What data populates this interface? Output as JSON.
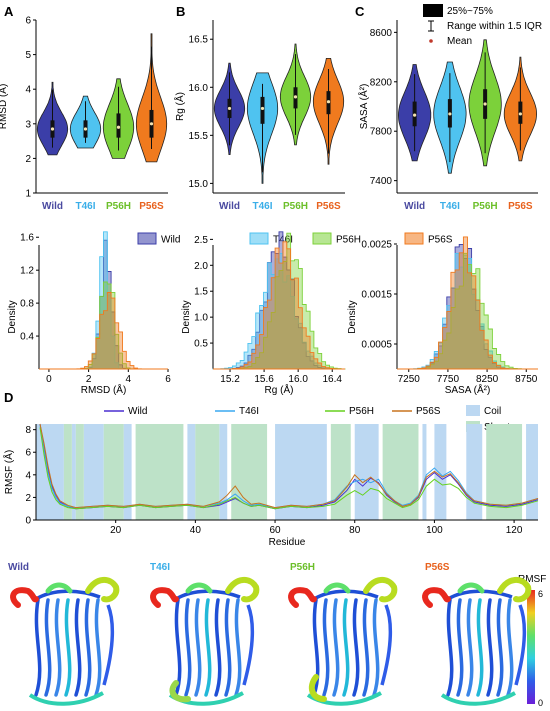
{
  "panel_letters": [
    "A",
    "B",
    "C",
    "D"
  ],
  "groups": [
    "Wild",
    "T46I",
    "P56H",
    "P56S"
  ],
  "group_colors": [
    "#3b3ea8",
    "#4fc3f0",
    "#7cd13a",
    "#f07a1e"
  ],
  "group_label_colors": [
    "#4a4aa0",
    "#3aaee8",
    "#6cbf2a",
    "#e8621e"
  ],
  "legend_top": {
    "iqr_label": "25%~75%",
    "range_label": "Range within 1.5 IQR",
    "mean_label": "Mean"
  },
  "legend_mid": [
    "Wild",
    "T46I",
    "P56H",
    "P56S"
  ],
  "legend_d": {
    "series": [
      "Wild",
      "T46I",
      "P56H",
      "P56S"
    ],
    "colors": [
      "#4a2fd0",
      "#3aa8f0",
      "#66d11e",
      "#c8741e"
    ],
    "coil": "Coil",
    "sheet": "Sheet"
  },
  "rmsf_colorbar": {
    "title": "RMSF",
    "max": "6",
    "min": "0"
  },
  "chart_data": [
    {
      "type": "violin",
      "panel": "A",
      "ylabel": "RMSD (Å)",
      "ylim": [
        1,
        6
      ],
      "yticks": [
        1,
        2,
        3,
        4,
        5,
        6
      ],
      "categories": [
        "Wild",
        "T46I",
        "P56H",
        "P56S"
      ],
      "medians": [
        2.85,
        2.85,
        2.9,
        3.0
      ],
      "q1": [
        2.6,
        2.6,
        2.6,
        2.6
      ],
      "q3": [
        3.1,
        3.1,
        3.3,
        3.4
      ],
      "min": [
        2.1,
        2.3,
        2.0,
        1.9
      ],
      "max": [
        4.2,
        3.8,
        4.3,
        5.6
      ]
    },
    {
      "type": "violin",
      "panel": "B",
      "ylabel": "Rg (Å)",
      "ylim": [
        14.9,
        16.7
      ],
      "yticks": [
        15.0,
        15.5,
        16.0,
        16.5
      ],
      "categories": [
        "Wild",
        "T46I",
        "P56H",
        "P56S"
      ],
      "medians": [
        15.78,
        15.78,
        15.9,
        15.85
      ],
      "q1": [
        15.68,
        15.62,
        15.78,
        15.72
      ],
      "q3": [
        15.88,
        15.9,
        16.0,
        15.96
      ],
      "min": [
        15.3,
        15.0,
        15.4,
        15.2
      ],
      "max": [
        16.25,
        16.15,
        16.45,
        16.3
      ]
    },
    {
      "type": "violin",
      "panel": "C",
      "ylabel": "SASA (Å²)",
      "ylim": [
        7300,
        8700
      ],
      "yticks": [
        7400,
        7800,
        8200,
        8600
      ],
      "categories": [
        "Wild",
        "T46I",
        "P56H",
        "P56S"
      ],
      "medians": [
        7930,
        7940,
        8020,
        7940
      ],
      "q1": [
        7840,
        7830,
        7900,
        7860
      ],
      "q3": [
        8040,
        8060,
        8140,
        8040
      ],
      "min": [
        7560,
        7460,
        7520,
        7560
      ],
      "max": [
        8340,
        8360,
        8540,
        8400
      ]
    },
    {
      "type": "histogram",
      "panel": "A-lower",
      "xlabel": "RMSD (Å)",
      "ylabel": "Density",
      "xlim": [
        -0.5,
        6
      ],
      "ylim": [
        0,
        1.7
      ],
      "xticks": [
        0,
        2,
        4,
        6
      ],
      "yticks": [
        0.4,
        0.8,
        1.2,
        1.6
      ],
      "series": [
        {
          "name": "Wild",
          "mean": 2.9,
          "sd": 0.28
        },
        {
          "name": "T46I",
          "mean": 2.8,
          "sd": 0.25
        },
        {
          "name": "P56H",
          "mean": 2.95,
          "sd": 0.35
        },
        {
          "name": "P56S",
          "mean": 3.05,
          "sd": 0.45
        }
      ]
    },
    {
      "type": "histogram",
      "panel": "B-lower",
      "xlabel": "Rg (Å)",
      "ylabel": "Density",
      "xlim": [
        15.0,
        16.55
      ],
      "ylim": [
        0,
        2.7
      ],
      "xticks": [
        15.2,
        15.6,
        16.0,
        16.4
      ],
      "yticks": [
        0.5,
        1.0,
        1.5,
        2.0,
        2.5
      ],
      "series": [
        {
          "name": "Wild",
          "mean": 15.78,
          "sd": 0.16
        },
        {
          "name": "T46I",
          "mean": 15.76,
          "sd": 0.19
        },
        {
          "name": "P56H",
          "mean": 15.9,
          "sd": 0.17
        },
        {
          "name": "P56S",
          "mean": 15.83,
          "sd": 0.17
        }
      ]
    },
    {
      "type": "histogram",
      "panel": "C-lower",
      "xlabel": "SASA (Å²)",
      "ylabel": "Density",
      "xlim": [
        7100,
        8900
      ],
      "ylim": [
        0,
        0.0028
      ],
      "xticks": [
        7250,
        7750,
        8250,
        8750
      ],
      "yticks": [
        0.0005,
        0.0015,
        0.0025
      ],
      "series": [
        {
          "name": "Wild",
          "mean": 7940,
          "sd": 160
        },
        {
          "name": "T46I",
          "mean": 7945,
          "sd": 175
        },
        {
          "name": "P56H",
          "mean": 8020,
          "sd": 185
        },
        {
          "name": "P56S",
          "mean": 7950,
          "sd": 165
        }
      ]
    },
    {
      "type": "line",
      "panel": "D",
      "xlabel": "Residue",
      "ylabel": "RMSF (Å)",
      "xlim": [
        0,
        126
      ],
      "ylim": [
        0,
        8.5
      ],
      "xticks": [
        20,
        40,
        60,
        80,
        100,
        120
      ],
      "yticks": [
        0,
        2,
        4,
        6,
        8
      ],
      "coil_regions": [
        [
          0,
          7
        ],
        [
          9,
          10
        ],
        [
          12,
          17
        ],
        [
          22,
          24
        ],
        [
          38,
          40
        ],
        [
          46,
          48
        ],
        [
          60,
          73
        ],
        [
          80,
          86
        ],
        [
          97,
          98
        ],
        [
          100,
          103
        ],
        [
          108,
          112
        ],
        [
          123,
          126
        ]
      ],
      "sheet_regions": [
        [
          7,
          9
        ],
        [
          10,
          12
        ],
        [
          17,
          22
        ],
        [
          25,
          37
        ],
        [
          40,
          46
        ],
        [
          49,
          58
        ],
        [
          74,
          79
        ],
        [
          87,
          96
        ],
        [
          113,
          122
        ]
      ],
      "series": [
        {
          "name": "Wild",
          "x": [
            1,
            2,
            3,
            4,
            5,
            6,
            8,
            10,
            14,
            18,
            22,
            26,
            30,
            34,
            38,
            42,
            46,
            48,
            50,
            52,
            54,
            56,
            60,
            64,
            68,
            72,
            75,
            78,
            80,
            82,
            84,
            86,
            88,
            90,
            92,
            94,
            96,
            98,
            100,
            102,
            104,
            106,
            108,
            110,
            114,
            118,
            122,
            126
          ],
          "y": [
            8.6,
            6.5,
            4.5,
            3.0,
            2.2,
            1.6,
            1.2,
            1.0,
            1.1,
            1.2,
            1.1,
            1.3,
            1.1,
            1.2,
            1.3,
            1.1,
            1.3,
            1.6,
            1.9,
            1.5,
            1.2,
            1.3,
            1.0,
            1.2,
            1.1,
            1.3,
            1.6,
            2.6,
            3.6,
            3.0,
            3.7,
            3.3,
            2.2,
            1.6,
            1.2,
            1.4,
            2.0,
            3.6,
            4.2,
            3.6,
            4.0,
            3.2,
            2.2,
            1.6,
            1.3,
            1.2,
            1.4,
            1.8
          ]
        },
        {
          "name": "T46I",
          "x": [
            1,
            2,
            3,
            4,
            5,
            6,
            8,
            10,
            14,
            18,
            22,
            26,
            30,
            34,
            38,
            42,
            46,
            48,
            50,
            52,
            54,
            56,
            60,
            64,
            68,
            72,
            75,
            78,
            80,
            82,
            84,
            86,
            88,
            90,
            92,
            94,
            96,
            98,
            100,
            102,
            104,
            106,
            108,
            110,
            114,
            118,
            122,
            126
          ],
          "y": [
            8.4,
            6.2,
            4.2,
            2.8,
            2.0,
            1.5,
            1.2,
            1.1,
            1.2,
            1.3,
            1.2,
            1.4,
            1.2,
            1.3,
            1.4,
            1.2,
            1.5,
            1.8,
            2.3,
            1.7,
            1.3,
            1.4,
            1.1,
            1.3,
            1.2,
            1.4,
            1.8,
            3.0,
            3.4,
            3.6,
            3.3,
            3.6,
            2.4,
            1.7,
            1.3,
            1.5,
            2.2,
            4.0,
            4.6,
            3.9,
            4.3,
            3.5,
            2.4,
            1.7,
            1.4,
            1.3,
            1.5,
            1.9
          ]
        },
        {
          "name": "P56H",
          "x": [
            1,
            2,
            3,
            4,
            5,
            6,
            8,
            10,
            14,
            18,
            22,
            26,
            30,
            34,
            38,
            42,
            46,
            48,
            50,
            52,
            54,
            56,
            60,
            64,
            68,
            72,
            75,
            78,
            80,
            82,
            84,
            86,
            88,
            90,
            92,
            94,
            96,
            98,
            100,
            102,
            104,
            106,
            108,
            110,
            114,
            118,
            122,
            126
          ],
          "y": [
            8.2,
            5.8,
            3.8,
            2.5,
            1.8,
            1.4,
            1.1,
            1.0,
            1.1,
            1.2,
            1.1,
            1.3,
            1.1,
            1.2,
            1.3,
            1.1,
            1.4,
            1.7,
            2.0,
            1.5,
            1.2,
            1.3,
            1.0,
            1.2,
            1.1,
            1.2,
            1.4,
            2.2,
            2.6,
            2.2,
            2.8,
            2.6,
            1.9,
            1.5,
            1.1,
            1.3,
            1.8,
            3.0,
            3.6,
            3.1,
            3.2,
            2.8,
            2.0,
            1.5,
            1.2,
            1.1,
            1.3,
            1.7
          ]
        },
        {
          "name": "P56S",
          "x": [
            1,
            2,
            3,
            4,
            5,
            6,
            8,
            10,
            14,
            18,
            22,
            26,
            30,
            34,
            38,
            42,
            46,
            48,
            50,
            52,
            54,
            56,
            60,
            64,
            68,
            72,
            75,
            78,
            80,
            82,
            84,
            86,
            88,
            90,
            92,
            94,
            96,
            98,
            100,
            102,
            104,
            106,
            108,
            110,
            114,
            118,
            122,
            126
          ],
          "y": [
            8.5,
            6.8,
            4.8,
            3.2,
            2.3,
            1.7,
            1.3,
            1.1,
            1.2,
            1.3,
            1.2,
            1.4,
            1.2,
            1.3,
            1.4,
            1.2,
            1.6,
            2.2,
            3.0,
            2.0,
            1.4,
            1.5,
            1.1,
            1.3,
            1.2,
            1.4,
            1.7,
            2.9,
            4.0,
            3.3,
            3.8,
            3.2,
            2.3,
            1.7,
            1.2,
            1.4,
            2.1,
            3.8,
            4.3,
            3.8,
            4.1,
            3.3,
            2.3,
            1.7,
            1.4,
            1.3,
            1.5,
            1.9
          ]
        }
      ]
    }
  ],
  "structures": {
    "labels": [
      "Wild",
      "T46I",
      "P56H",
      "P56S"
    ]
  }
}
